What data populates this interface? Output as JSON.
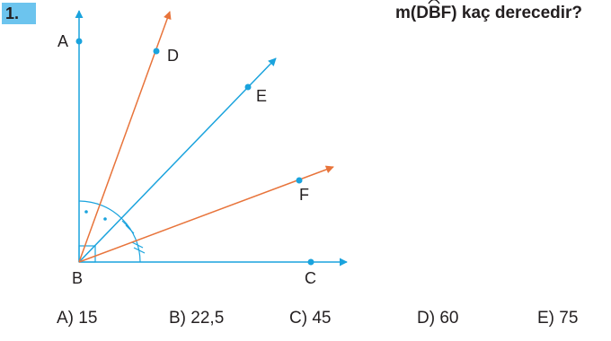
{
  "question_number": "1.",
  "question": {
    "prefix": "m(",
    "angle_name": "DBF",
    "suffix": ") kaç derecedir?"
  },
  "figure": {
    "points": {
      "A": "A",
      "B": "B",
      "C": "C",
      "D": "D",
      "E": "E",
      "F": "F"
    },
    "colors": {
      "blue_ray": "#1aa3dd",
      "orange_ray": "#e8743b",
      "point": "#1aa3dd"
    }
  },
  "options": [
    {
      "label": "A) 15"
    },
    {
      "label": "B) 22,5"
    },
    {
      "label": "C) 45"
    },
    {
      "label": "D) 60"
    },
    {
      "label": "E) 75"
    }
  ]
}
